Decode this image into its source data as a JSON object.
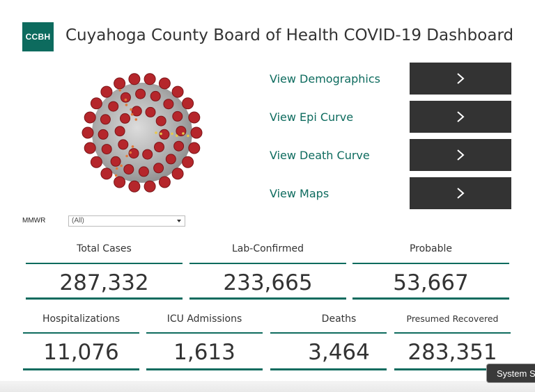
{
  "header": {
    "logo_text": "CCBH",
    "title": "Cuyahoga County Board of Health COVID-19 Dashboard"
  },
  "nav": {
    "items": [
      {
        "label": "View Demographics"
      },
      {
        "label": "View Epi Curve"
      },
      {
        "label": "View Death Curve"
      },
      {
        "label": "View Maps"
      }
    ],
    "button_icon": "chevron-right-icon"
  },
  "filter": {
    "label": "MMWR",
    "value": "(All)"
  },
  "kpis": {
    "row1": [
      {
        "label": "Total  Cases",
        "value": "287,332"
      },
      {
        "label": "Lab-Confirmed",
        "value": "233,665"
      },
      {
        "label": "Probable",
        "value": "53,667"
      }
    ],
    "row2": [
      {
        "label": "Hospitalizations",
        "value": "11,076"
      },
      {
        "label": "ICU Admissions",
        "value": "1,613"
      },
      {
        "label": "Deaths",
        "value": "3,464"
      },
      {
        "label": "Presumed Recovered",
        "value": "283,351"
      }
    ]
  },
  "tooltip": {
    "text": "System S"
  },
  "colors": {
    "accent": "#0d6b5e",
    "button": "#333333",
    "virus_spike": "#b5262b",
    "virus_body": "#b9b9b9"
  }
}
